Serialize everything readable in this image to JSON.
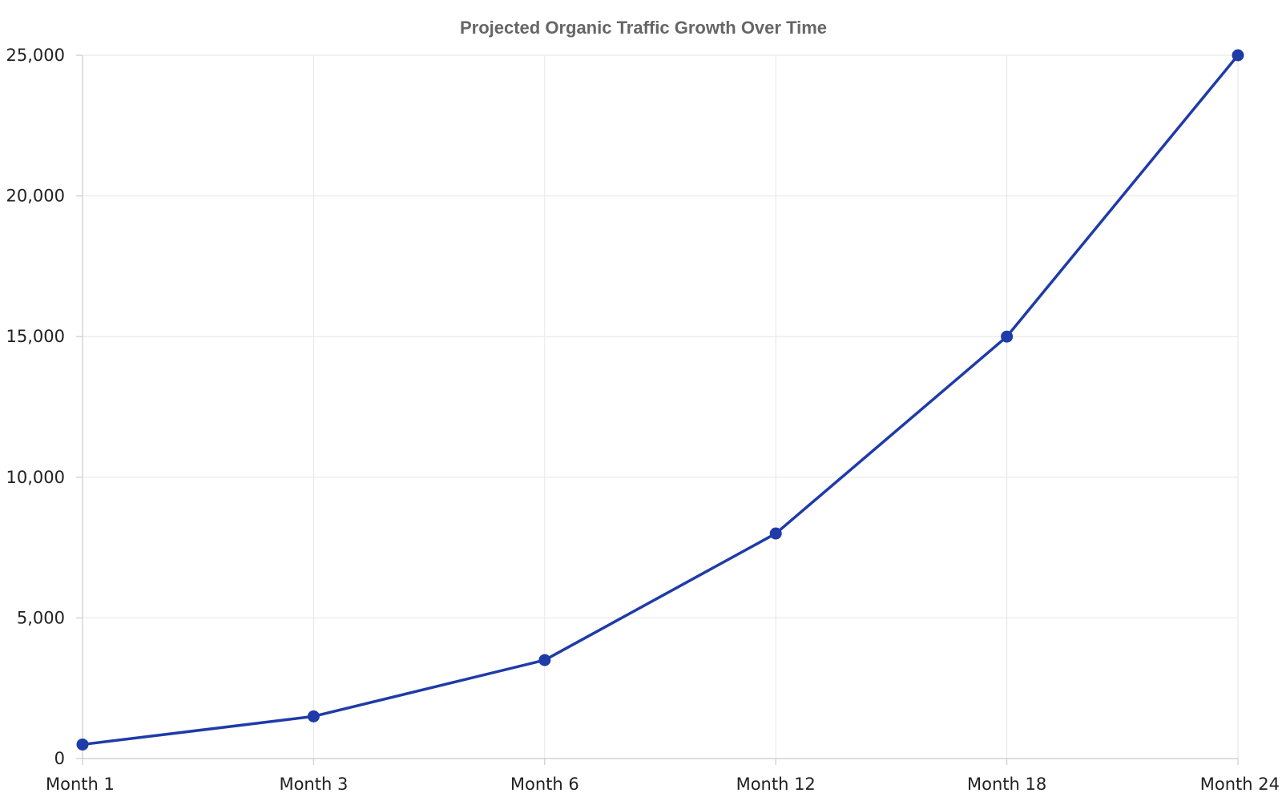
{
  "chart_data": {
    "type": "line",
    "title": "Projected Organic Traffic Growth Over Time",
    "xlabel": "",
    "ylabel": "",
    "categories": [
      "Month 1",
      "Month 3",
      "Month 6",
      "Month 12",
      "Month 18",
      "Month 24"
    ],
    "series": [
      {
        "values": [
          500,
          1500,
          3500,
          8000,
          15000,
          25000
        ],
        "color": "#1f3ba8"
      }
    ],
    "ylim": [
      0,
      25000
    ],
    "yticks": [
      0,
      5000,
      10000,
      15000,
      20000,
      25000
    ],
    "ytick_labels": [
      "0",
      "5,000",
      "10,000",
      "15,000",
      "20,000",
      "25,000"
    ],
    "grid": true,
    "legend": "none",
    "colors": {
      "line": "#1f3ba8",
      "grid": "#e6e6e6",
      "axis": "#cccccc",
      "title": "#666666"
    }
  }
}
